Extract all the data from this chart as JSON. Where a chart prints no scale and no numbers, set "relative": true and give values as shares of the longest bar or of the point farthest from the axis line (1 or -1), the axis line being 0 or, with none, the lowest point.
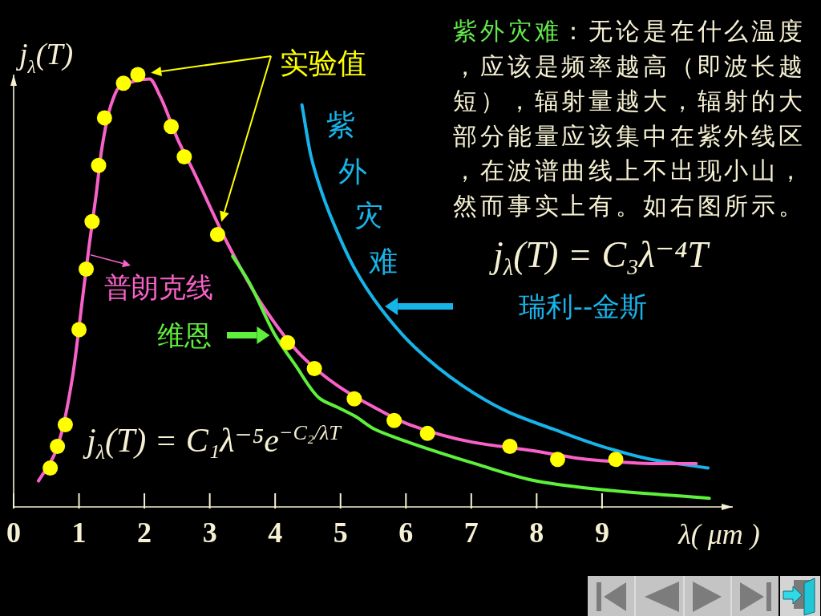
{
  "chart_data": {
    "type": "line",
    "relative": true,
    "xlabel": "λ( μm )",
    "ylabel": "j$_{λ}$(T)",
    "xlim": [
      0,
      11
    ],
    "xticks": [
      0,
      1,
      2,
      3,
      4,
      5,
      6,
      7,
      8,
      9
    ],
    "series": [
      {
        "name": "瑞利--金斯",
        "color": "#17b4ea",
        "x": [
          4.41,
          4.55,
          4.73,
          4.91,
          5.22,
          5.61,
          6.13,
          6.87,
          7.56,
          8.25,
          9.0,
          9.75,
          10.62
        ],
        "values": [
          0.93,
          0.81,
          0.72,
          0.65,
          0.55,
          0.46,
          0.37,
          0.28,
          0.22,
          0.18,
          0.14,
          0.11,
          0.09
        ]
      },
      {
        "name": "普朗克线",
        "color": "#f862c8",
        "x": [
          0.38,
          0.62,
          0.73,
          0.9,
          1.06,
          1.16,
          1.26,
          1.35,
          1.49,
          1.61,
          2.08,
          2.24,
          2.51,
          2.74,
          3.27,
          3.79,
          4.4,
          4.96,
          5.52,
          6.06,
          7.01,
          7.95,
          8.77,
          9.9,
          10.44
        ],
        "values": [
          0.06,
          0.12,
          0.17,
          0.3,
          0.49,
          0.61,
          0.72,
          0.83,
          0.93,
          0.97,
          0.99,
          0.95,
          0.85,
          0.78,
          0.61,
          0.47,
          0.35,
          0.28,
          0.23,
          0.19,
          0.15,
          0.13,
          0.11,
          0.1,
          0.1
        ]
      },
      {
        "name": "维恩",
        "color": "#5ef03c",
        "x": [
          3.35,
          3.6,
          3.99,
          4.3,
          4.69,
          4.96,
          5.22,
          5.52,
          5.85,
          7.06,
          8.0,
          9.0,
          10.64
        ],
        "values": [
          0.58,
          0.52,
          0.4,
          0.33,
          0.25,
          0.23,
          0.21,
          0.18,
          0.16,
          0.1,
          0.06,
          0.04,
          0.02
        ]
      },
      {
        "name": "实验值",
        "type": "scatter",
        "marker": "circle",
        "color": "#ffff00",
        "x": [
          0.56,
          0.67,
          0.79,
          1.0,
          1.11,
          1.2,
          1.3,
          1.39,
          1.68,
          1.9,
          2.41,
          2.61,
          3.12,
          4.19,
          4.6,
          5.21,
          5.82,
          6.33,
          7.59,
          8.32,
          9.21
        ],
        "values": [
          0.09,
          0.14,
          0.19,
          0.41,
          0.55,
          0.66,
          0.79,
          0.9,
          0.98,
          1.0,
          0.88,
          0.81,
          0.63,
          0.38,
          0.32,
          0.25,
          0.2,
          0.17,
          0.14,
          0.11,
          0.11
        ]
      }
    ],
    "annotations": [
      "紫外灾难",
      "：无论是在什么温度",
      "，应该是频率越高（即波长越",
      "短），辐射量越大，辐射的大",
      "部分能量应该集中在紫外线区",
      "，在波谱曲线上不出现小山，",
      "然而事实上有。如右图所示。",
      "紫外灾难",
      "j$_{λ}$(T) = C₁λ⁻⁵e$^{−C₂/λT}$",
      "j$_{λ}$(T) = C₃λ⁻⁴T"
    ]
  }
}
